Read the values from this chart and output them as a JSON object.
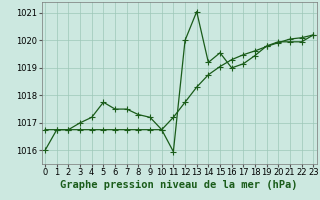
{
  "xlabel": "Graphe pression niveau de la mer (hPa)",
  "background_color": "#cce8e0",
  "plot_bg_color": "#cce8e0",
  "line_color": "#1a5c1a",
  "marker_color": "#1a5c1a",
  "grid_color": "#9dc8b8",
  "ylim": [
    1015.5,
    1021.4
  ],
  "xlim": [
    -0.3,
    23.3
  ],
  "yticks": [
    1016,
    1017,
    1018,
    1019,
    1020,
    1021
  ],
  "xticks": [
    0,
    1,
    2,
    3,
    4,
    5,
    6,
    7,
    8,
    9,
    10,
    11,
    12,
    13,
    14,
    15,
    16,
    17,
    18,
    19,
    20,
    21,
    22,
    23
  ],
  "series1_x": [
    0,
    1,
    2,
    3,
    4,
    5,
    6,
    7,
    8,
    9,
    10,
    11,
    12,
    13,
    14,
    15,
    16,
    17,
    18,
    19,
    20,
    21,
    22,
    23
  ],
  "series1_y": [
    1016.0,
    1016.75,
    1016.75,
    1017.0,
    1017.2,
    1017.75,
    1017.5,
    1017.5,
    1017.3,
    1017.2,
    1016.75,
    1015.95,
    1020.0,
    1021.05,
    1019.2,
    1019.55,
    1019.0,
    1019.15,
    1019.45,
    1019.8,
    1019.95,
    1019.95,
    1019.95,
    1020.2
  ],
  "series2_x": [
    0,
    1,
    2,
    3,
    4,
    5,
    6,
    7,
    8,
    9,
    10,
    11,
    12,
    13,
    14,
    15,
    16,
    17,
    18,
    19,
    20,
    21,
    22,
    23
  ],
  "series2_y": [
    1016.75,
    1016.75,
    1016.75,
    1016.75,
    1016.75,
    1016.75,
    1016.75,
    1016.75,
    1016.75,
    1016.75,
    1016.75,
    1017.2,
    1017.75,
    1018.3,
    1018.75,
    1019.05,
    1019.3,
    1019.48,
    1019.62,
    1019.78,
    1019.92,
    1020.05,
    1020.1,
    1020.2
  ],
  "xlabel_fontsize": 7.5,
  "tick_fontsize": 6,
  "xlabel_fontweight": "bold",
  "linewidth": 0.9,
  "markersize": 2.2
}
